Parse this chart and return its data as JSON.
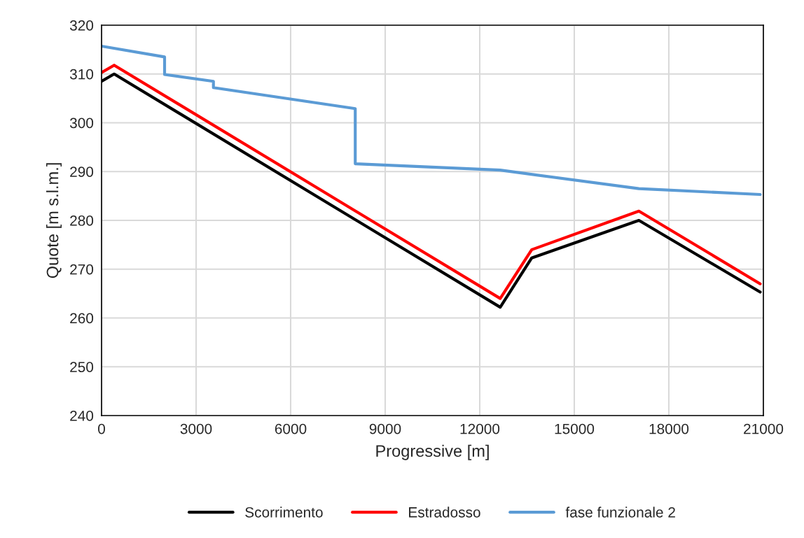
{
  "chart_data": {
    "type": "line",
    "xlabel": "Progressive [m]",
    "ylabel": "Quote [m s.l.m.]",
    "xlim": [
      0,
      21000
    ],
    "xticks": [
      0,
      3000,
      6000,
      9000,
      12000,
      15000,
      18000,
      21000
    ],
    "ylim": [
      240,
      320
    ],
    "yticks": [
      240,
      250,
      260,
      270,
      280,
      290,
      300,
      310,
      320
    ],
    "grid": true,
    "legend": "bottom",
    "marker": "none",
    "line_style": "solid",
    "series": [
      {
        "name": "Scorrimento",
        "color": "#000000",
        "x": [
          0,
          400,
          12650,
          13650,
          17050,
          20900
        ],
        "values": [
          308.5,
          310,
          262.2,
          272.3,
          280,
          265.3
        ]
      },
      {
        "name": "Estradosso",
        "color": "#ff0000",
        "x": [
          0,
          400,
          12650,
          13650,
          17050,
          20900
        ],
        "values": [
          310.3,
          311.8,
          264,
          274,
          281.9,
          267
        ]
      },
      {
        "name": "fase funzionale 2",
        "color": "#5b9bd5",
        "x": [
          0,
          2000,
          2000,
          3550,
          3550,
          8050,
          8050,
          12650,
          17050,
          20900
        ],
        "values": [
          315.7,
          313.5,
          309.9,
          308.5,
          307.2,
          302.9,
          291.6,
          290.3,
          286.5,
          285.3
        ]
      }
    ]
  }
}
